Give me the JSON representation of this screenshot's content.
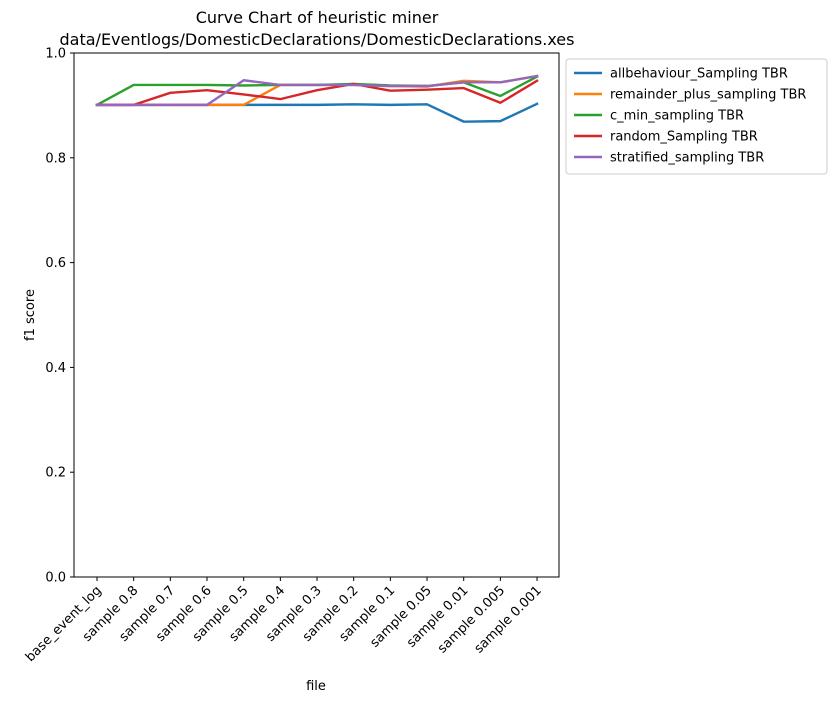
{
  "chart_data": {
    "type": "line",
    "title_line1": "Curve Chart of heuristic miner",
    "title_line2": "data/Eventlogs/DomesticDeclarations/DomesticDeclarations.xes",
    "xlabel": "file",
    "ylabel": "f1 score",
    "ylim": [
      0,
      1.0
    ],
    "yticks": [
      "0.0",
      "0.2",
      "0.4",
      "0.6",
      "0.8",
      "1.0"
    ],
    "ytick_values": [
      0,
      0.2,
      0.4,
      0.6,
      0.8,
      1.0
    ],
    "grid": false,
    "legend_position": "outside-top-right",
    "categories": [
      "base_event_log",
      "sample 0.8",
      "sample 0.7",
      "sample 0.6",
      "sample 0.5",
      "sample 0.4",
      "sample 0.3",
      "sample 0.2",
      "sample 0.1",
      "sample 0.05",
      "sample 0.01",
      "sample 0.005",
      "sample 0.001"
    ],
    "series": [
      {
        "name": "allbehaviour_Sampling TBR",
        "color": "#1f77b4",
        "values": [
          0.901,
          0.901,
          0.901,
          0.901,
          0.901,
          0.901,
          0.901,
          0.902,
          0.901,
          0.902,
          0.869,
          0.87,
          0.903
        ]
      },
      {
        "name": "remainder_plus_sampling TBR",
        "color": "#ff7f0e",
        "values": [
          0.901,
          0.901,
          0.901,
          0.901,
          0.901,
          0.939,
          0.939,
          0.939,
          0.937,
          0.936,
          0.947,
          0.944,
          0.956
        ]
      },
      {
        "name": "c_min_sampling TBR",
        "color": "#2ca02c",
        "values": [
          0.901,
          0.939,
          0.939,
          0.939,
          0.938,
          0.939,
          0.939,
          0.941,
          0.938,
          0.937,
          0.944,
          0.918,
          0.955
        ]
      },
      {
        "name": "random_Sampling TBR",
        "color": "#d62728",
        "values": [
          0.901,
          0.901,
          0.924,
          0.929,
          0.921,
          0.912,
          0.929,
          0.941,
          0.928,
          0.93,
          0.933,
          0.905,
          0.947
        ]
      },
      {
        "name": "stratified_sampling TBR",
        "color": "#9467bd",
        "values": [
          0.901,
          0.901,
          0.901,
          0.901,
          0.948,
          0.939,
          0.939,
          0.939,
          0.937,
          0.937,
          0.944,
          0.944,
          0.956
        ]
      }
    ]
  }
}
